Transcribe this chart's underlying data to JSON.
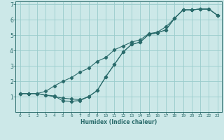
{
  "xlabel": "Humidex (Indice chaleur)",
  "bg_color": "#cce8e8",
  "grid_color": "#99cccc",
  "line_color": "#2a6b6b",
  "xlim": [
    -0.5,
    23.5
  ],
  "ylim": [
    0.0,
    7.2
  ],
  "xticks": [
    0,
    1,
    2,
    3,
    4,
    5,
    6,
    7,
    8,
    9,
    10,
    11,
    12,
    13,
    14,
    15,
    16,
    17,
    18,
    19,
    20,
    21,
    22,
    23
  ],
  "yticks": [
    1,
    2,
    3,
    4,
    5,
    6,
    7
  ],
  "curve1_x": [
    0,
    1,
    2,
    3,
    4,
    5,
    6,
    7,
    8,
    9,
    10,
    11,
    12,
    13,
    14,
    15,
    16,
    17,
    18,
    19,
    20,
    21,
    22,
    23
  ],
  "curve1_y": [
    1.2,
    1.2,
    1.2,
    1.1,
    1.05,
    0.72,
    0.7,
    0.75,
    1.0,
    1.4,
    2.3,
    3.1,
    3.9,
    4.4,
    4.55,
    5.05,
    5.15,
    5.35,
    6.1,
    6.65,
    6.65,
    6.7,
    6.7,
    6.3
  ],
  "curve2_x": [
    0,
    1,
    2,
    3,
    4,
    5,
    6,
    7,
    8,
    9,
    10,
    11,
    12,
    13,
    14,
    15,
    16,
    17,
    18,
    19,
    20,
    21,
    22,
    23
  ],
  "curve2_y": [
    1.2,
    1.2,
    1.2,
    1.35,
    1.7,
    2.0,
    2.25,
    2.6,
    2.85,
    3.3,
    3.55,
    4.05,
    4.3,
    4.55,
    4.7,
    5.1,
    5.2,
    5.55,
    6.1,
    6.65,
    6.65,
    6.7,
    6.7,
    6.3
  ],
  "curve3_x": [
    0,
    1,
    2,
    3,
    4,
    5,
    6,
    7,
    8,
    9,
    10,
    11,
    12,
    13,
    14,
    15,
    16,
    17,
    18,
    19,
    20,
    21,
    22,
    23
  ],
  "curve3_y": [
    1.2,
    1.2,
    1.2,
    1.1,
    1.0,
    0.9,
    0.85,
    0.8,
    1.0,
    1.4,
    2.3,
    3.1,
    3.9,
    4.4,
    4.55,
    5.05,
    5.15,
    5.35,
    6.1,
    6.65,
    6.65,
    6.7,
    6.7,
    6.3
  ]
}
